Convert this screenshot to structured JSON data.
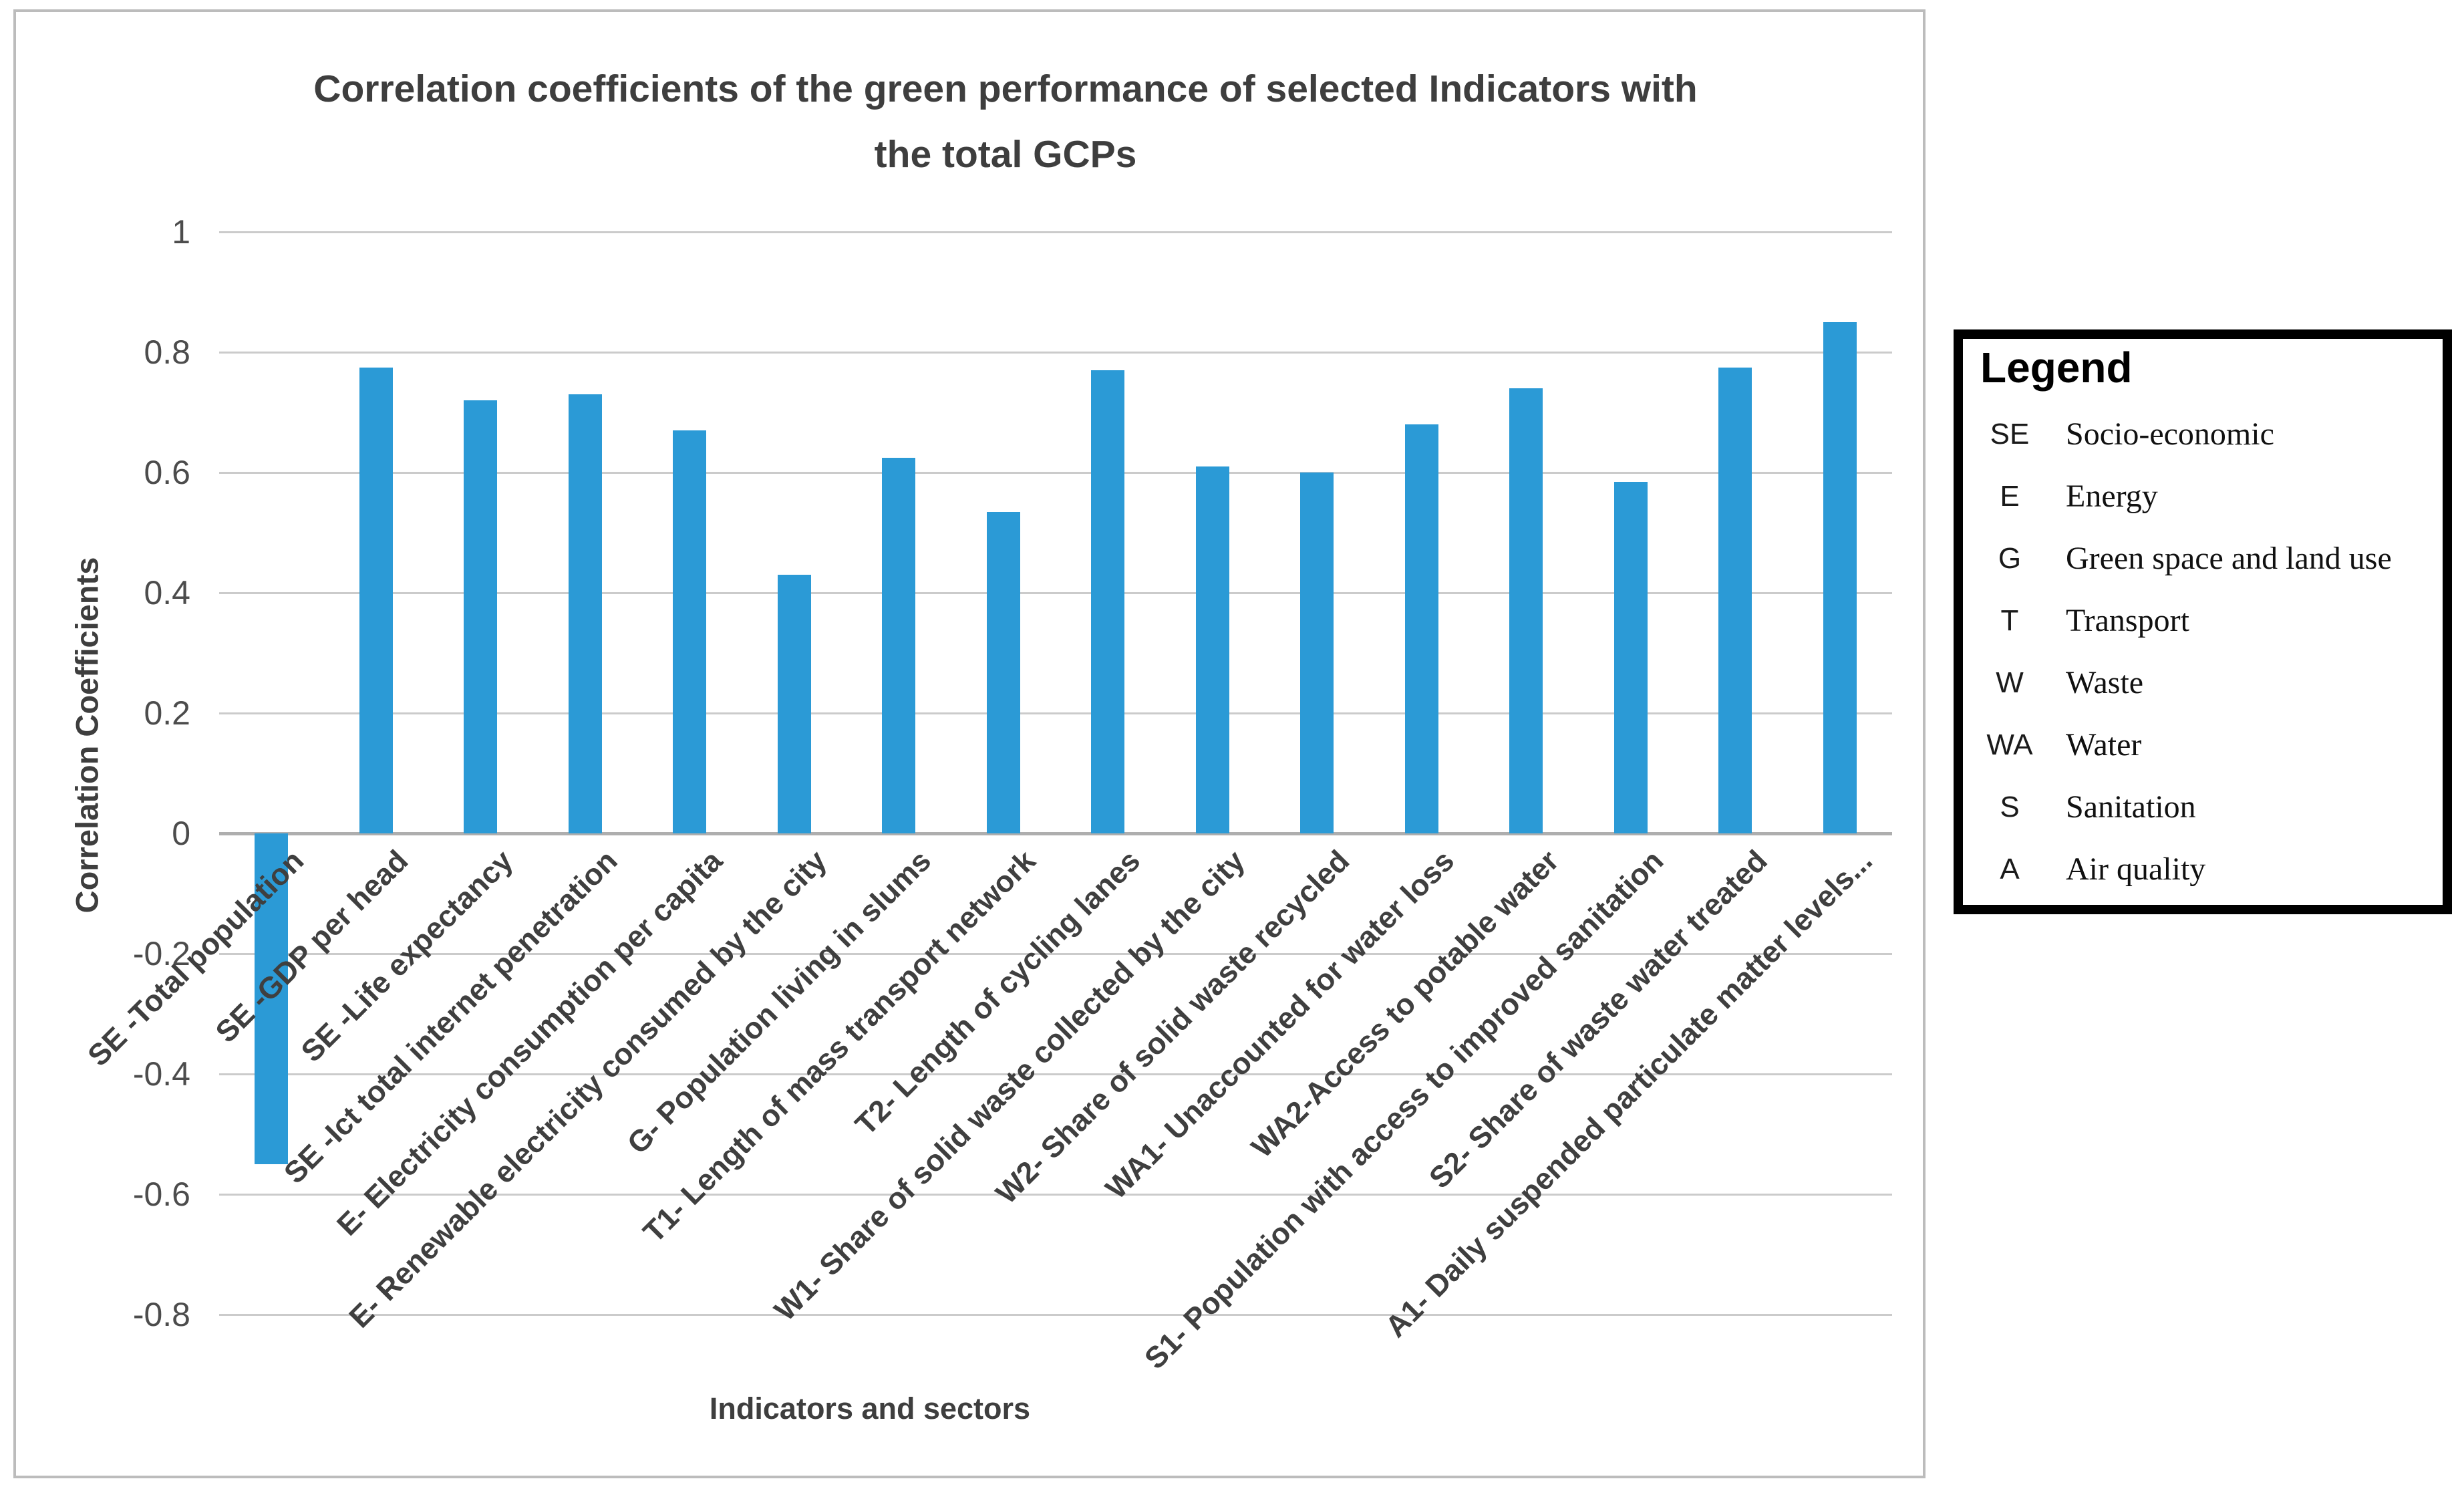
{
  "title": {
    "line1": "Correlation coefficients of the green performance of selected Indicators with",
    "line2": "the total GCPs"
  },
  "y_axis": {
    "title": "Correlation Coefficients",
    "ticks": [
      "1",
      "0.8",
      "0.6",
      "0.4",
      "0.2",
      "0",
      "-0.2",
      "-0.4",
      "-0.6",
      "-0.8"
    ]
  },
  "x_axis": {
    "title": "Indicators and  sectors"
  },
  "legend": {
    "title": "Legend",
    "entries": [
      {
        "abbr": "SE",
        "name": "Socio-economic"
      },
      {
        "abbr": "E",
        "name": "Energy"
      },
      {
        "abbr": "G",
        "name": "Green space and land use"
      },
      {
        "abbr": "T",
        "name": "Transport"
      },
      {
        "abbr": "W",
        "name": "Waste"
      },
      {
        "abbr": "WA",
        "name": "Water"
      },
      {
        "abbr": "S",
        "name": "Sanitation"
      },
      {
        "abbr": "A",
        "name": "Air quality"
      }
    ]
  },
  "colors": {
    "bar": "#2B9AD6",
    "gridline": "#cbcbcb",
    "zero_line": "#aeaeae"
  },
  "chart_data": {
    "type": "bar",
    "title": "Correlation coefficients of the green performance of selected Indicators with the total GCPs",
    "xlabel": "Indicators and  sectors",
    "ylabel": "Correlation Coefficients",
    "ylim": [
      -0.8,
      1.0
    ],
    "ytick_step": 0.2,
    "grid": true,
    "legend_position": "right",
    "categories": [
      "SE -Total population",
      "SE -GDP per head",
      "SE -Life expectancy",
      "SE -Ict total internet penetration",
      "E- Electricity consumption per capita",
      "E- Renewable electricity consumed by the city",
      "G- Population living in slums",
      "T1- Length of mass transport network",
      "T2- Length of cycling lanes",
      "W1- Share of solid waste collected by the city",
      "W2- Share of solid waste recycled",
      "WA1- Unaccounted for water loss",
      "WA2-Access to potable water",
      "S1- Population with access to improved sanitation",
      "S2- Share of waste water treated",
      "A1- Daily suspended particulate matter levels..."
    ],
    "values": [
      -0.55,
      0.775,
      0.72,
      0.73,
      0.67,
      0.43,
      0.625,
      0.535,
      0.77,
      0.61,
      0.6,
      0.68,
      0.74,
      0.585,
      0.775,
      0.85
    ]
  }
}
